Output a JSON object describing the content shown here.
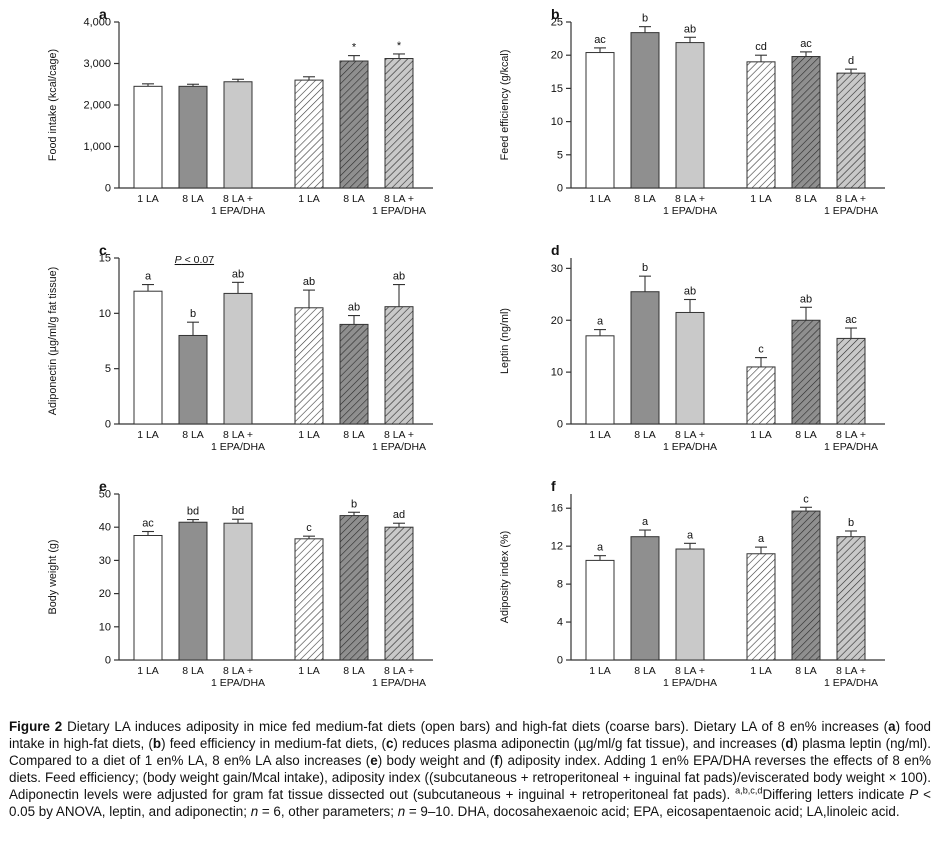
{
  "figure": {
    "caption_segments": [
      {
        "text": "Figure 2",
        "bold": true
      },
      {
        "text": "  Dietary LA induces adiposity in mice fed medium-fat diets (open bars) and high-fat diets (coarse bars). Dietary LA of 8 en% increases ("
      },
      {
        "text": "a",
        "bold": true
      },
      {
        "text": ") food intake in high-fat diets, ("
      },
      {
        "text": "b",
        "bold": true
      },
      {
        "text": ") feed efficiency in medium-fat diets, ("
      },
      {
        "text": "c",
        "bold": true
      },
      {
        "text": ") reduces plasma adiponectin (µg/ml/g fat tissue), and increases ("
      },
      {
        "text": "d",
        "bold": true
      },
      {
        "text": ") plasma leptin (ng/ml). Compared to a diet of 1 en% LA, 8 en% LA also increases ("
      },
      {
        "text": "e",
        "bold": true
      },
      {
        "text": ") body weight and ("
      },
      {
        "text": "f",
        "bold": true
      },
      {
        "text": ") adiposity index. Adding 1 en% EPA/DHA reverses the effects of 8 en% diets. Feed efficiency; (body weight gain/Mcal intake), adiposity index ((subcutaneous + retroperitoneal + inguinal fat pads)/eviscerated body weight × 100). Adiponectin levels were adjusted for gram fat tissue dissected out (subcutaneous + inguinal + retroperitoneal fat pads). "
      },
      {
        "text": "a,b,c,d",
        "sup": true
      },
      {
        "text": "Differing letters indicate "
      },
      {
        "text": "P",
        "italic": true
      },
      {
        "text": " < 0.05 by ANOVA, leptin, and adiponectin; "
      },
      {
        "text": "n",
        "italic": true
      },
      {
        "text": " = 6, other parameters; "
      },
      {
        "text": "n",
        "italic": true
      },
      {
        "text": " = 9–10. DHA, docosahexaenoic acid; EPA, eicosapentaenoic acid; LA,linoleic acid."
      }
    ]
  },
  "colors": {
    "bar_open": "#ffffff",
    "bar_dark": "#8f8f8f",
    "bar_light": "#c9c9c9",
    "axis": "#333333",
    "text": "#111111"
  },
  "bar_styles": [
    "open-white",
    "solid-dark-gray",
    "solid-light-gray",
    "hatched-white",
    "hatched-dark-gray",
    "hatched-light-gray"
  ],
  "legend_meaning": {
    "open_bars": "medium-fat diets",
    "coarse_bars": "high-fat diets"
  },
  "chart_data": [
    {
      "panel": "a",
      "type": "bar",
      "ylabel": "Food intake (kcal/cage)",
      "ymax": 4000,
      "yticks": [
        0,
        1000,
        2000,
        3000,
        4000
      ],
      "ytick_labels": [
        "0",
        "1,000",
        "2,000",
        "3,000",
        "4,000"
      ],
      "categories": [
        "1 LA",
        "8 LA",
        "8 LA + 1 EPA/DHA",
        "1 LA",
        "8 LA",
        "8 LA + 1 EPA/DHA"
      ],
      "xlabel_lines": [
        [
          "1 LA"
        ],
        [
          "8 LA"
        ],
        [
          "8 LA +",
          "1 EPA/DHA"
        ],
        [
          "1 LA"
        ],
        [
          "8 LA"
        ],
        [
          "8 LA +",
          "1 EPA/DHA"
        ]
      ],
      "values": [
        2450,
        2450,
        2560,
        2600,
        3060,
        3120
      ],
      "errors": [
        60,
        50,
        60,
        80,
        130,
        110
      ],
      "sig_labels": [
        "",
        "",
        "",
        "",
        "*",
        "*"
      ]
    },
    {
      "panel": "b",
      "type": "bar",
      "ylabel": "Feed efficiency (g/kcal)",
      "ymax": 25,
      "yticks": [
        0,
        5,
        10,
        15,
        20,
        25
      ],
      "ytick_labels": [
        "0",
        "5",
        "10",
        "15",
        "20",
        "25"
      ],
      "categories": [
        "1 LA",
        "8 LA",
        "8 LA + 1 EPA/DHA",
        "1 LA",
        "8 LA",
        "8 LA + 1 EPA/DHA"
      ],
      "xlabel_lines": [
        [
          "1 LA"
        ],
        [
          "8 LA"
        ],
        [
          "8 LA +",
          "1 EPA/DHA"
        ],
        [
          "1 LA"
        ],
        [
          "8 LA"
        ],
        [
          "8 LA +",
          "1 EPA/DHA"
        ]
      ],
      "values": [
        20.4,
        23.4,
        21.9,
        19.0,
        19.8,
        17.3
      ],
      "errors": [
        0.7,
        0.9,
        0.8,
        1.0,
        0.7,
        0.6
      ],
      "sig_labels": [
        "ac",
        "b",
        "ab",
        "cd",
        "ac",
        "d"
      ]
    },
    {
      "panel": "c",
      "type": "bar",
      "ylabel": "Adiponectin (µg/ml/g fat tissue)",
      "ymax": 15,
      "yticks": [
        0,
        5,
        10,
        15
      ],
      "ytick_labels": [
        "0",
        "5",
        "10",
        "15"
      ],
      "categories": [
        "1 LA",
        "8 LA",
        "8 LA + 1 EPA/DHA",
        "1 LA",
        "8 LA",
        "8 LA + 1 EPA/DHA"
      ],
      "xlabel_lines": [
        [
          "1 LA"
        ],
        [
          "8 LA"
        ],
        [
          "8 LA +",
          "1 EPA/DHA"
        ],
        [
          "1 LA"
        ],
        [
          "8 LA"
        ],
        [
          "8 LA +",
          "1 EPA/DHA"
        ]
      ],
      "values": [
        12.0,
        8.0,
        11.8,
        10.5,
        9.0,
        10.6
      ],
      "errors": [
        0.6,
        1.2,
        1.0,
        1.6,
        0.8,
        2.0
      ],
      "sig_labels": [
        "a",
        "b",
        "ab",
        "ab",
        "ab",
        "ab"
      ],
      "annotations": [
        {
          "italic_part": "P",
          "text": " < 0.07",
          "x_frac": 0.24,
          "y_value": 14.55,
          "underline": true
        }
      ]
    },
    {
      "panel": "d",
      "type": "bar",
      "ylabel": "Leptin (ng/ml)",
      "ymax": 32,
      "yticks": [
        0,
        10,
        20,
        30
      ],
      "ytick_labels": [
        "0",
        "10",
        "20",
        "30"
      ],
      "categories": [
        "1 LA",
        "8 LA",
        "8 LA + 1 EPA/DHA",
        "1 LA",
        "8 LA",
        "8 LA + 1 EPA/DHA"
      ],
      "xlabel_lines": [
        [
          "1 LA"
        ],
        [
          "8 LA"
        ],
        [
          "8 LA +",
          "1 EPA/DHA"
        ],
        [
          "1 LA"
        ],
        [
          "8 LA"
        ],
        [
          "8 LA +",
          "1 EPA/DHA"
        ]
      ],
      "values": [
        17.0,
        25.5,
        21.5,
        11.0,
        20.0,
        16.5
      ],
      "errors": [
        1.2,
        3.0,
        2.5,
        1.8,
        2.5,
        2.0
      ],
      "sig_labels": [
        "a",
        "b",
        "ab",
        "c",
        "ab",
        "ac"
      ]
    },
    {
      "panel": "e",
      "type": "bar",
      "ylabel": "Body weight (g)",
      "ymax": 50,
      "yticks": [
        0,
        10,
        20,
        30,
        40,
        50
      ],
      "ytick_labels": [
        "0",
        "10",
        "20",
        "30",
        "40",
        "50"
      ],
      "categories": [
        "1 LA",
        "8 LA",
        "8 LA + 1 EPA/DHA",
        "1 LA",
        "8 LA",
        "8 LA + 1 EPA/DHA"
      ],
      "xlabel_lines": [
        [
          "1 LA"
        ],
        [
          "8 LA"
        ],
        [
          "8 LA +",
          "1 EPA/DHA"
        ],
        [
          "1 LA"
        ],
        [
          "8 LA"
        ],
        [
          "8 LA +",
          "1 EPA/DHA"
        ]
      ],
      "values": [
        37.5,
        41.5,
        41.2,
        36.5,
        43.5,
        40.0
      ],
      "errors": [
        1.2,
        0.8,
        1.2,
        0.8,
        1.0,
        1.2
      ],
      "sig_labels": [
        "ac",
        "bd",
        "bd",
        "c",
        "b",
        "ad"
      ]
    },
    {
      "panel": "f",
      "type": "bar",
      "ylabel": "Adiposity index (%)",
      "ymax": 17.5,
      "yticks": [
        0,
        4,
        8,
        12,
        16
      ],
      "ytick_labels": [
        "0",
        "4",
        "8",
        "12",
        "16"
      ],
      "categories": [
        "1 LA",
        "8 LA",
        "8 LA + 1 EPA/DHA",
        "1 LA",
        "8 LA",
        "8 LA + 1 EPA/DHA"
      ],
      "xlabel_lines": [
        [
          "1 LA"
        ],
        [
          "8 LA"
        ],
        [
          "8 LA +",
          "1 EPA/DHA"
        ],
        [
          "1 LA"
        ],
        [
          "8 LA"
        ],
        [
          "8 LA +",
          "1 EPA/DHA"
        ]
      ],
      "values": [
        10.5,
        13.0,
        11.7,
        11.2,
        15.7,
        13.0
      ],
      "errors": [
        0.5,
        0.7,
        0.6,
        0.7,
        0.4,
        0.6
      ],
      "sig_labels": [
        "a",
        "a",
        "a",
        "a",
        "c",
        "b"
      ]
    }
  ]
}
